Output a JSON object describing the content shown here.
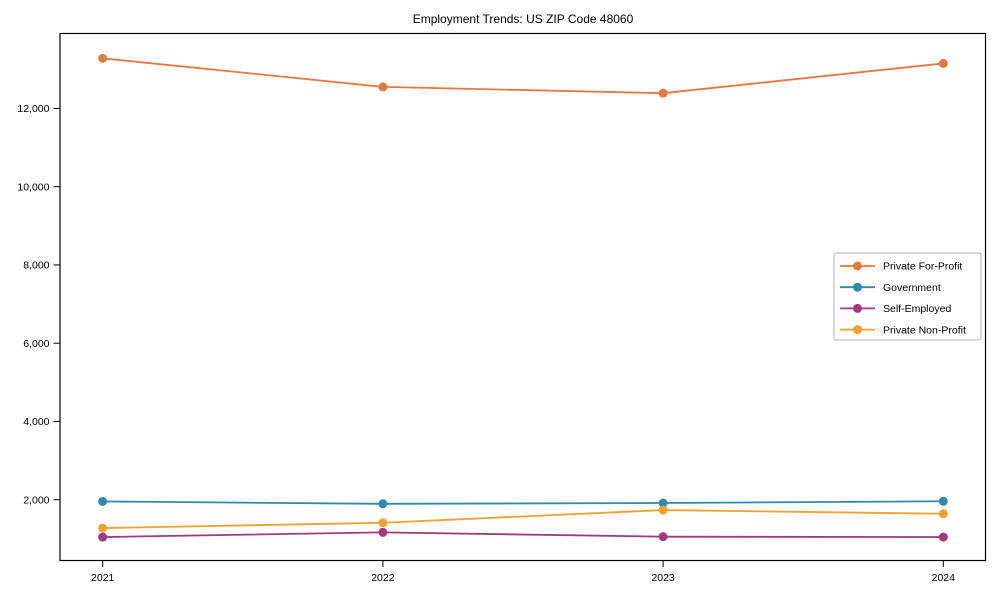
{
  "figure": {
    "title": "Employment Trends: US ZIP Code 48060"
  },
  "chart_data": {
    "type": "line",
    "title": "Employment Trends: US ZIP Code 48060",
    "x": [
      2021,
      2022,
      2023,
      2024
    ],
    "xtick_labels": [
      "2021",
      "2022",
      "2023",
      "2024"
    ],
    "series": [
      {
        "name": "Private For-Profit",
        "color": "#e4793f",
        "values": [
          13280,
          12550,
          12390,
          13150
        ]
      },
      {
        "name": "Government",
        "color": "#2f8bab",
        "values": [
          1955,
          1895,
          1915,
          1960
        ]
      },
      {
        "name": "Self-Employed",
        "color": "#a4397f",
        "values": [
          1045,
          1165,
          1055,
          1045
        ]
      },
      {
        "name": "Private Non-Profit",
        "color": "#efa22d",
        "values": [
          1275,
          1410,
          1735,
          1640
        ]
      }
    ],
    "xlabel": "",
    "ylabel": "",
    "ylim": [
      446,
      13915
    ],
    "yticks": [
      2000,
      4000,
      6000,
      8000,
      10000,
      12000
    ],
    "ytick_labels": [
      "2,000",
      "4,000",
      "6,000",
      "8,000",
      "10,000",
      "12,000"
    ],
    "grid": false,
    "marker": "o",
    "legend_position": "center-right",
    "colors": {
      "spine": "#000000",
      "legend_border": "#b3b3b3",
      "background": "#ffffff"
    }
  }
}
